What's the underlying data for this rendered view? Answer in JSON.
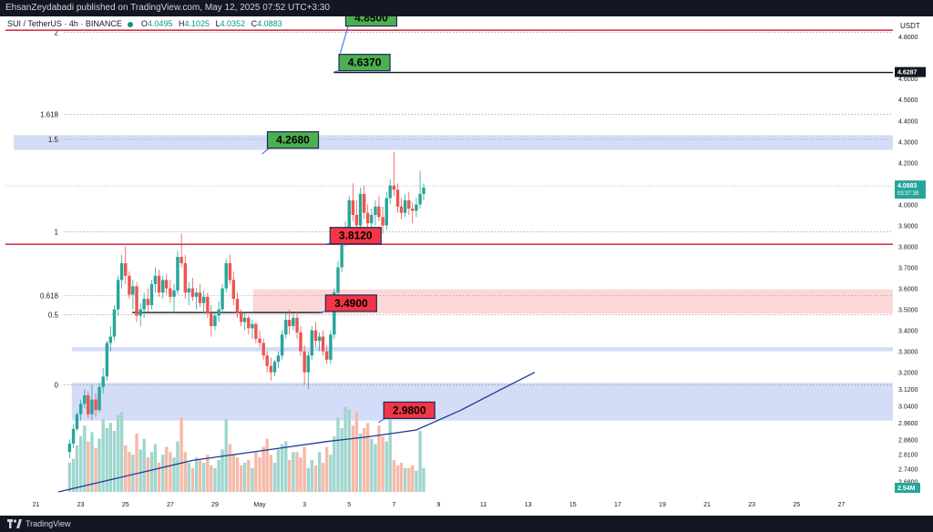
{
  "header": {
    "published": "EhsanZeydabadi published on TradingView.com, May 12, 2025 07:52 UTC+3:30"
  },
  "legend": {
    "symbol": "SUI / TetherUS · 4h · BINANCE",
    "open_label": "O",
    "open": "4.0495",
    "high_label": "H",
    "high": "4.1025",
    "low_label": "L",
    "low": "4.0352",
    "close_label": "C",
    "close": "4.0883"
  },
  "axis_unit": "USDT",
  "footer": {
    "brand": "TradingView"
  },
  "colors": {
    "up": "#26a69a",
    "down": "#ef5350",
    "vol_up": "#9fd6cf",
    "vol_down": "#f6b9a8",
    "ma": "#1f3a93",
    "zone_blue": "#d2dbf7",
    "zone_red": "#fbd5d5",
    "resistance": "#d6354a"
  },
  "chart_data": {
    "type": "candlestick",
    "y_range": [
      2.63,
      4.87
    ],
    "y_ticks": [
      "4.8000",
      "4.6000",
      "4.5000",
      "4.4000",
      "4.3000",
      "4.2000",
      "4.1000",
      "4.0000",
      "3.9000",
      "3.8000",
      "3.7000",
      "3.6000",
      "3.5000",
      "3.4000",
      "3.3000",
      "3.2000",
      "3.1200",
      "3.0400",
      "2.9600",
      "2.8800",
      "2.8100",
      "2.7400",
      "2.6800"
    ],
    "x_ticks": [
      "21",
      "23",
      "25",
      "27",
      "29",
      "May",
      "3",
      "5",
      "7",
      "9",
      "11",
      "13",
      "15",
      "17",
      "19",
      "21",
      "23",
      "25",
      "27"
    ],
    "last_price": "4.0883",
    "countdown": "03:37:39",
    "marked_price": "4.6287",
    "volume_label": "2.54M",
    "fib_levels": [
      {
        "label": "2",
        "price": 4.82
      },
      {
        "label": "1.618",
        "price": 4.43
      },
      {
        "label": "1.5",
        "price": 4.31
      },
      {
        "label": "1",
        "price": 3.87
      },
      {
        "label": "0.618",
        "price": 3.565
      },
      {
        "label": "0.5",
        "price": 3.475
      },
      {
        "label": "0",
        "price": 3.14
      }
    ],
    "zones": [
      {
        "type": "support",
        "from": 2.97,
        "to": 3.15,
        "start_day": 22.6
      },
      {
        "type": "supply",
        "from": 3.3,
        "to": 3.32,
        "start_day": 22.6
      },
      {
        "type": "resistance",
        "from": 4.26,
        "to": 4.33,
        "start_day": 20.0
      },
      {
        "type": "demand",
        "from": 3.48,
        "to": 3.595,
        "start_day": 30.7
      }
    ],
    "horizontal_lines": [
      {
        "price": 4.83,
        "color": "red"
      },
      {
        "price": 3.81,
        "color": "red"
      },
      {
        "price": 3.485,
        "color": "black",
        "from_day": 25.3,
        "to_day": 33.8
      },
      {
        "price": 4.6287,
        "color": "black",
        "from_day": 34.3
      }
    ],
    "targets": [
      {
        "label": "4.8500",
        "price": 4.85,
        "style": "green",
        "anchor_day": 34.6,
        "anchor_price": 4.72
      },
      {
        "label": "4.6370",
        "price": 4.637,
        "style": "green",
        "anchor_day": 34.3,
        "anchor_price": 4.63
      },
      {
        "label": "4.2680",
        "price": 4.268,
        "style": "green",
        "anchor_day": 31.1,
        "anchor_price": 4.24
      },
      {
        "label": "3.8120",
        "price": 3.812,
        "style": "red",
        "anchor_day": 33.9,
        "anchor_price": 3.81
      },
      {
        "label": "3.4900",
        "price": 3.49,
        "style": "red",
        "anchor_day": 33.7,
        "anchor_price": 3.485
      },
      {
        "label": "2.9800",
        "price": 2.98,
        "style": "red",
        "anchor_day": 36.3,
        "anchor_price": 2.96
      }
    ],
    "ma": [
      [
        22.0,
        2.63
      ],
      [
        24.0,
        2.68
      ],
      [
        26.0,
        2.73
      ],
      [
        28.0,
        2.78
      ],
      [
        30.0,
        2.81
      ],
      [
        32.0,
        2.84
      ],
      [
        34.0,
        2.87
      ],
      [
        36.0,
        2.895
      ],
      [
        38.0,
        2.925
      ],
      [
        40.0,
        3.02
      ],
      [
        42.0,
        3.13
      ],
      [
        43.3,
        3.2
      ]
    ],
    "candles": [
      {
        "day": 22.5,
        "o": 2.82,
        "h": 2.88,
        "l": 2.79,
        "c": 2.86
      },
      {
        "day": 22.67,
        "o": 2.86,
        "h": 2.95,
        "l": 2.84,
        "c": 2.93
      },
      {
        "day": 22.83,
        "o": 2.93,
        "h": 3.01,
        "l": 2.92,
        "c": 3.0
      },
      {
        "day": 23.0,
        "o": 3.0,
        "h": 3.07,
        "l": 2.97,
        "c": 3.05
      },
      {
        "day": 23.17,
        "o": 3.05,
        "h": 3.12,
        "l": 3.03,
        "c": 3.09
      },
      {
        "day": 23.33,
        "o": 3.09,
        "h": 3.11,
        "l": 2.98,
        "c": 3.0
      },
      {
        "day": 23.5,
        "o": 3.0,
        "h": 3.14,
        "l": 2.97,
        "c": 3.07
      },
      {
        "day": 23.67,
        "o": 3.07,
        "h": 3.1,
        "l": 2.99,
        "c": 3.02
      },
      {
        "day": 23.83,
        "o": 3.02,
        "h": 3.15,
        "l": 3.01,
        "c": 3.13
      },
      {
        "day": 24.0,
        "o": 3.13,
        "h": 3.22,
        "l": 3.1,
        "c": 3.18
      },
      {
        "day": 24.17,
        "o": 3.18,
        "h": 3.35,
        "l": 3.16,
        "c": 3.34
      },
      {
        "day": 24.33,
        "o": 3.34,
        "h": 3.42,
        "l": 3.3,
        "c": 3.37
      },
      {
        "day": 24.5,
        "o": 3.37,
        "h": 3.52,
        "l": 3.35,
        "c": 3.5
      },
      {
        "day": 24.67,
        "o": 3.5,
        "h": 3.66,
        "l": 3.47,
        "c": 3.64
      },
      {
        "day": 24.83,
        "o": 3.64,
        "h": 3.76,
        "l": 3.6,
        "c": 3.72
      },
      {
        "day": 25.0,
        "o": 3.72,
        "h": 3.8,
        "l": 3.62,
        "c": 3.66
      },
      {
        "day": 25.17,
        "o": 3.66,
        "h": 3.68,
        "l": 3.55,
        "c": 3.57
      },
      {
        "day": 25.33,
        "o": 3.57,
        "h": 3.64,
        "l": 3.5,
        "c": 3.61
      },
      {
        "day": 25.5,
        "o": 3.61,
        "h": 3.63,
        "l": 3.44,
        "c": 3.47
      },
      {
        "day": 25.67,
        "o": 3.47,
        "h": 3.53,
        "l": 3.42,
        "c": 3.5
      },
      {
        "day": 25.83,
        "o": 3.5,
        "h": 3.58,
        "l": 3.46,
        "c": 3.55
      },
      {
        "day": 26.0,
        "o": 3.55,
        "h": 3.6,
        "l": 3.49,
        "c": 3.52
      },
      {
        "day": 26.17,
        "o": 3.52,
        "h": 3.64,
        "l": 3.5,
        "c": 3.62
      },
      {
        "day": 26.33,
        "o": 3.62,
        "h": 3.7,
        "l": 3.58,
        "c": 3.66
      },
      {
        "day": 26.5,
        "o": 3.66,
        "h": 3.69,
        "l": 3.56,
        "c": 3.58
      },
      {
        "day": 26.67,
        "o": 3.58,
        "h": 3.66,
        "l": 3.55,
        "c": 3.64
      },
      {
        "day": 26.83,
        "o": 3.64,
        "h": 3.67,
        "l": 3.57,
        "c": 3.6
      },
      {
        "day": 27.0,
        "o": 3.6,
        "h": 3.64,
        "l": 3.53,
        "c": 3.56
      },
      {
        "day": 27.17,
        "o": 3.56,
        "h": 3.62,
        "l": 3.49,
        "c": 3.59
      },
      {
        "day": 27.33,
        "o": 3.59,
        "h": 3.78,
        "l": 3.57,
        "c": 3.75
      },
      {
        "day": 27.5,
        "o": 3.75,
        "h": 3.86,
        "l": 3.7,
        "c": 3.72
      },
      {
        "day": 27.67,
        "o": 3.72,
        "h": 3.76,
        "l": 3.55,
        "c": 3.58
      },
      {
        "day": 27.83,
        "o": 3.58,
        "h": 3.63,
        "l": 3.52,
        "c": 3.6
      },
      {
        "day": 28.0,
        "o": 3.6,
        "h": 3.65,
        "l": 3.54,
        "c": 3.56
      },
      {
        "day": 28.17,
        "o": 3.56,
        "h": 3.6,
        "l": 3.5,
        "c": 3.58
      },
      {
        "day": 28.33,
        "o": 3.58,
        "h": 3.62,
        "l": 3.51,
        "c": 3.53
      },
      {
        "day": 28.5,
        "o": 3.53,
        "h": 3.59,
        "l": 3.48,
        "c": 3.56
      },
      {
        "day": 28.67,
        "o": 3.56,
        "h": 3.58,
        "l": 3.46,
        "c": 3.48
      },
      {
        "day": 28.83,
        "o": 3.48,
        "h": 3.52,
        "l": 3.37,
        "c": 3.42
      },
      {
        "day": 29.0,
        "o": 3.42,
        "h": 3.49,
        "l": 3.4,
        "c": 3.47
      },
      {
        "day": 29.17,
        "o": 3.47,
        "h": 3.54,
        "l": 3.44,
        "c": 3.5
      },
      {
        "day": 29.33,
        "o": 3.5,
        "h": 3.62,
        "l": 3.48,
        "c": 3.6
      },
      {
        "day": 29.5,
        "o": 3.6,
        "h": 3.74,
        "l": 3.58,
        "c": 3.72
      },
      {
        "day": 29.67,
        "o": 3.72,
        "h": 3.76,
        "l": 3.62,
        "c": 3.64
      },
      {
        "day": 29.83,
        "o": 3.64,
        "h": 3.68,
        "l": 3.52,
        "c": 3.55
      },
      {
        "day": 30.0,
        "o": 3.55,
        "h": 3.58,
        "l": 3.46,
        "c": 3.48
      },
      {
        "day": 30.17,
        "o": 3.48,
        "h": 3.5,
        "l": 3.42,
        "c": 3.44
      },
      {
        "day": 30.33,
        "o": 3.44,
        "h": 3.48,
        "l": 3.4,
        "c": 3.46
      },
      {
        "day": 30.5,
        "o": 3.46,
        "h": 3.47,
        "l": 3.38,
        "c": 3.41
      },
      {
        "day": 30.67,
        "o": 3.41,
        "h": 3.45,
        "l": 3.36,
        "c": 3.43
      },
      {
        "day": 30.83,
        "o": 3.43,
        "h": 3.44,
        "l": 3.34,
        "c": 3.36
      },
      {
        "day": 31.0,
        "o": 3.36,
        "h": 3.4,
        "l": 3.32,
        "c": 3.34
      },
      {
        "day": 31.17,
        "o": 3.34,
        "h": 3.36,
        "l": 3.26,
        "c": 3.28
      },
      {
        "day": 31.33,
        "o": 3.28,
        "h": 3.3,
        "l": 3.2,
        "c": 3.23
      },
      {
        "day": 31.5,
        "o": 3.23,
        "h": 3.27,
        "l": 3.16,
        "c": 3.2
      },
      {
        "day": 31.67,
        "o": 3.2,
        "h": 3.26,
        "l": 3.18,
        "c": 3.25
      },
      {
        "day": 31.83,
        "o": 3.25,
        "h": 3.3,
        "l": 3.22,
        "c": 3.28
      },
      {
        "day": 32.0,
        "o": 3.28,
        "h": 3.4,
        "l": 3.26,
        "c": 3.38
      },
      {
        "day": 32.17,
        "o": 3.38,
        "h": 3.48,
        "l": 3.36,
        "c": 3.45
      },
      {
        "day": 32.33,
        "o": 3.45,
        "h": 3.5,
        "l": 3.38,
        "c": 3.42
      },
      {
        "day": 32.5,
        "o": 3.42,
        "h": 3.48,
        "l": 3.4,
        "c": 3.46
      },
      {
        "day": 32.67,
        "o": 3.46,
        "h": 3.49,
        "l": 3.36,
        "c": 3.39
      },
      {
        "day": 32.83,
        "o": 3.39,
        "h": 3.42,
        "l": 3.28,
        "c": 3.3
      },
      {
        "day": 33.0,
        "o": 3.3,
        "h": 3.33,
        "l": 3.14,
        "c": 3.2
      },
      {
        "day": 33.17,
        "o": 3.2,
        "h": 3.3,
        "l": 3.12,
        "c": 3.28
      },
      {
        "day": 33.33,
        "o": 3.28,
        "h": 3.42,
        "l": 3.26,
        "c": 3.4
      },
      {
        "day": 33.5,
        "o": 3.4,
        "h": 3.44,
        "l": 3.32,
        "c": 3.35
      },
      {
        "day": 33.67,
        "o": 3.35,
        "h": 3.39,
        "l": 3.3,
        "c": 3.37
      },
      {
        "day": 33.83,
        "o": 3.37,
        "h": 3.4,
        "l": 3.28,
        "c": 3.3
      },
      {
        "day": 34.0,
        "o": 3.3,
        "h": 3.33,
        "l": 3.24,
        "c": 3.26
      },
      {
        "day": 34.17,
        "o": 3.26,
        "h": 3.4,
        "l": 3.24,
        "c": 3.38
      },
      {
        "day": 34.33,
        "o": 3.38,
        "h": 3.6,
        "l": 3.36,
        "c": 3.58
      },
      {
        "day": 34.5,
        "o": 3.58,
        "h": 3.73,
        "l": 3.56,
        "c": 3.7
      },
      {
        "day": 34.67,
        "o": 3.7,
        "h": 3.84,
        "l": 3.68,
        "c": 3.82
      },
      {
        "day": 34.83,
        "o": 3.82,
        "h": 3.92,
        "l": 3.8,
        "c": 3.88
      },
      {
        "day": 35.0,
        "o": 3.88,
        "h": 4.04,
        "l": 3.86,
        "c": 4.02
      },
      {
        "day": 35.17,
        "o": 4.02,
        "h": 4.1,
        "l": 3.92,
        "c": 3.95
      },
      {
        "day": 35.33,
        "o": 3.95,
        "h": 4.02,
        "l": 3.86,
        "c": 3.9
      },
      {
        "day": 35.5,
        "o": 3.9,
        "h": 4.08,
        "l": 3.88,
        "c": 4.05
      },
      {
        "day": 35.67,
        "o": 4.05,
        "h": 4.09,
        "l": 3.93,
        "c": 3.96
      },
      {
        "day": 35.83,
        "o": 3.96,
        "h": 4.0,
        "l": 3.88,
        "c": 3.91
      },
      {
        "day": 36.0,
        "o": 3.91,
        "h": 3.98,
        "l": 3.86,
        "c": 3.95
      },
      {
        "day": 36.17,
        "o": 3.95,
        "h": 4.02,
        "l": 3.9,
        "c": 3.99
      },
      {
        "day": 36.33,
        "o": 3.99,
        "h": 4.04,
        "l": 3.92,
        "c": 3.94
      },
      {
        "day": 36.5,
        "o": 3.94,
        "h": 3.99,
        "l": 3.86,
        "c": 3.9
      },
      {
        "day": 36.67,
        "o": 3.9,
        "h": 4.06,
        "l": 3.88,
        "c": 4.03
      },
      {
        "day": 36.83,
        "o": 4.03,
        "h": 4.12,
        "l": 4.0,
        "c": 4.09
      },
      {
        "day": 37.0,
        "o": 4.09,
        "h": 4.25,
        "l": 4.04,
        "c": 4.07
      },
      {
        "day": 37.17,
        "o": 4.07,
        "h": 4.1,
        "l": 3.96,
        "c": 3.99
      },
      {
        "day": 37.33,
        "o": 3.99,
        "h": 4.03,
        "l": 3.93,
        "c": 3.96
      },
      {
        "day": 37.5,
        "o": 3.96,
        "h": 4.05,
        "l": 3.94,
        "c": 4.02
      },
      {
        "day": 37.67,
        "o": 4.02,
        "h": 4.06,
        "l": 3.95,
        "c": 3.98
      },
      {
        "day": 37.83,
        "o": 3.98,
        "h": 4.01,
        "l": 3.91,
        "c": 3.97
      },
      {
        "day": 38.0,
        "o": 3.97,
        "h": 4.03,
        "l": 3.94,
        "c": 4.0
      },
      {
        "day": 38.17,
        "o": 4.0,
        "h": 4.16,
        "l": 3.98,
        "c": 4.05
      },
      {
        "day": 38.33,
        "o": 4.05,
        "h": 4.1,
        "l": 4.02,
        "c": 4.08
      }
    ],
    "volumes": [
      22,
      25,
      35,
      42,
      50,
      38,
      45,
      33,
      40,
      55,
      48,
      52,
      46,
      58,
      60,
      35,
      30,
      28,
      44,
      32,
      40,
      26,
      30,
      36,
      22,
      28,
      34,
      30,
      26,
      38,
      56,
      30,
      22,
      18,
      26,
      24,
      22,
      28,
      20,
      18,
      24,
      32,
      55,
      36,
      28,
      26,
      20,
      22,
      24,
      18,
      30,
      26,
      34,
      40,
      28,
      22,
      32,
      36,
      38,
      24,
      30,
      30,
      26,
      34,
      18,
      24,
      20,
      30,
      22,
      34,
      28,
      42,
      56,
      48,
      64,
      62,
      50,
      60,
      44,
      48,
      52,
      40,
      36,
      50,
      42,
      38,
      66,
      24,
      20,
      22,
      18,
      18,
      20,
      16,
      46,
      18
    ]
  }
}
